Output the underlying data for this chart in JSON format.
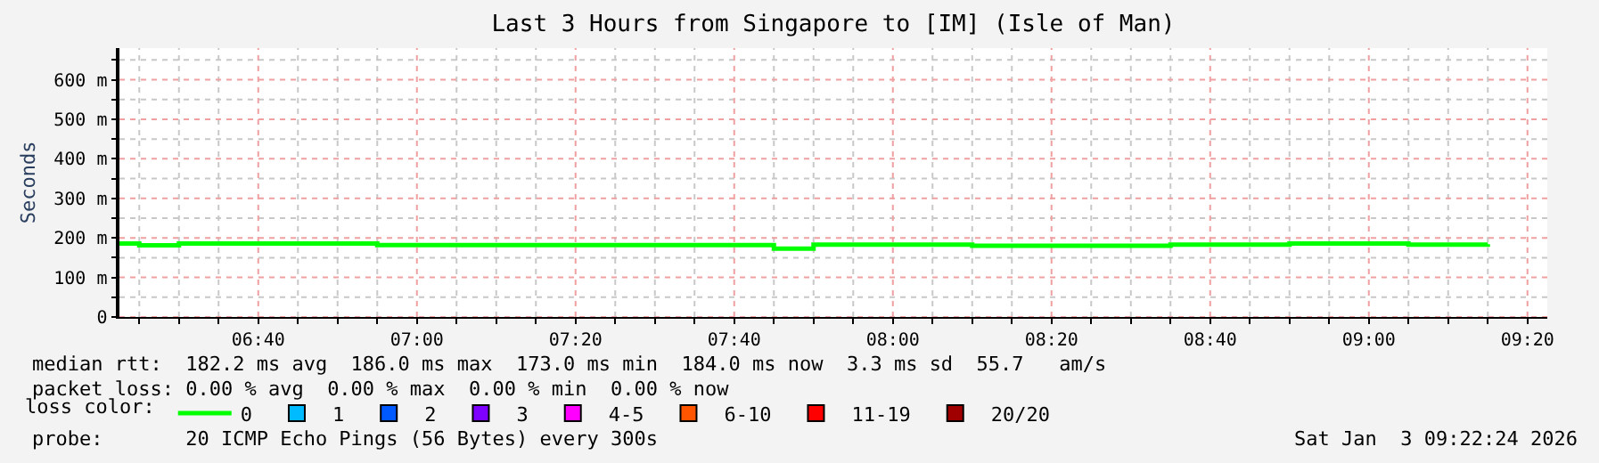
{
  "chart_data": {
    "type": "step",
    "title": "Last 3 Hours from Singapore to [IM] (Isle of Man)",
    "ylabel": "Seconds",
    "x": [
      6.375,
      6.4167,
      6.5,
      6.9167,
      7.75,
      7.8333,
      8.1667,
      8.5833,
      8.8333,
      9.0833,
      9.25
    ],
    "series": [
      {
        "name": "0",
        "color": "#00ff00",
        "values": [
          186,
          181,
          186,
          182,
          173,
          183,
          180,
          183,
          186,
          183,
          184
        ]
      },
      {
        "name": "1",
        "color": "#00bbff",
        "values": [
          null,
          null,
          null,
          null,
          null,
          null,
          null,
          null,
          null,
          null,
          null
        ]
      },
      {
        "name": "2",
        "color": "#0059ff",
        "values": [
          null,
          null,
          null,
          null,
          null,
          null,
          null,
          null,
          null,
          null,
          null
        ]
      },
      {
        "name": "3",
        "color": "#7e00ff",
        "values": [
          null,
          null,
          null,
          null,
          null,
          null,
          null,
          null,
          null,
          null,
          null
        ]
      },
      {
        "name": "4-5",
        "color": "#ff00ff",
        "values": [
          null,
          null,
          null,
          null,
          null,
          null,
          null,
          null,
          null,
          null,
          null
        ]
      },
      {
        "name": "6-10",
        "color": "#ff5500",
        "values": [
          null,
          null,
          null,
          null,
          null,
          null,
          null,
          null,
          null,
          null,
          null
        ]
      },
      {
        "name": "11-19",
        "color": "#ff0000",
        "values": [
          null,
          null,
          null,
          null,
          null,
          null,
          null,
          null,
          null,
          null,
          null
        ]
      },
      {
        "name": "20/20",
        "color": "#a10000",
        "values": [
          null,
          null,
          null,
          null,
          null,
          null,
          null,
          null,
          null,
          null,
          null
        ]
      }
    ],
    "legend_title": "loss color:",
    "legend": "bottom",
    "xlim": [
      6.375,
      9.375
    ],
    "ylim": [
      0,
      680
    ],
    "xticks": [
      {
        "value": 6.4167,
        "label": null
      },
      {
        "value": 6.5,
        "label": null
      },
      {
        "value": 6.5833,
        "label": null
      },
      {
        "value": 6.6667,
        "label": "06:40"
      },
      {
        "value": 6.75,
        "label": null
      },
      {
        "value": 6.8333,
        "label": null
      },
      {
        "value": 6.9167,
        "label": null
      },
      {
        "value": 7.0,
        "label": "07:00"
      },
      {
        "value": 7.0833,
        "label": null
      },
      {
        "value": 7.1667,
        "label": null
      },
      {
        "value": 7.25,
        "label": null
      },
      {
        "value": 7.3333,
        "label": "07:20"
      },
      {
        "value": 7.4167,
        "label": null
      },
      {
        "value": 7.5,
        "label": null
      },
      {
        "value": 7.5833,
        "label": null
      },
      {
        "value": 7.6667,
        "label": "07:40"
      },
      {
        "value": 7.75,
        "label": null
      },
      {
        "value": 7.8333,
        "label": null
      },
      {
        "value": 7.9167,
        "label": null
      },
      {
        "value": 8.0,
        "label": "08:00"
      },
      {
        "value": 8.0833,
        "label": null
      },
      {
        "value": 8.1667,
        "label": null
      },
      {
        "value": 8.25,
        "label": null
      },
      {
        "value": 8.3333,
        "label": "08:20"
      },
      {
        "value": 8.4167,
        "label": null
      },
      {
        "value": 8.5,
        "label": null
      },
      {
        "value": 8.5833,
        "label": null
      },
      {
        "value": 8.6667,
        "label": "08:40"
      },
      {
        "value": 8.75,
        "label": null
      },
      {
        "value": 8.8333,
        "label": null
      },
      {
        "value": 8.9167,
        "label": null
      },
      {
        "value": 9.0,
        "label": "09:00"
      },
      {
        "value": 9.0833,
        "label": null
      },
      {
        "value": 9.1667,
        "label": null
      },
      {
        "value": 9.25,
        "label": null
      },
      {
        "value": 9.3333,
        "label": "09:20"
      }
    ],
    "yticks": [
      0,
      {
        "value": 50,
        "label": null
      },
      {
        "value": 100,
        "label": "100 m"
      },
      {
        "value": 150,
        "label": null
      },
      {
        "value": 200,
        "label": "200 m"
      },
      {
        "value": 250,
        "label": null
      },
      {
        "value": 300,
        "label": "300 m"
      },
      {
        "value": 350,
        "label": null
      },
      {
        "value": 400,
        "label": "400 m"
      },
      {
        "value": 450,
        "label": null
      },
      {
        "value": 500,
        "label": "500 m"
      },
      {
        "value": 550,
        "label": null
      },
      {
        "value": 600,
        "label": "600 m"
      },
      {
        "value": 650,
        "label": null
      }
    ],
    "grid": true,
    "line_style": "solid",
    "marker": "none",
    "annotations": [
      "median rtt:  182.2 ms avg  186.0 ms max  173.0 ms min  184.0 ms now  3.3 ms sd  55.7   am/s",
      "packet loss: 0.00 % avg  0.00 % max  0.00 % min  0.00 % now",
      "probe:       20 ICMP Echo Pings (56 Bytes) every 300s",
      "Sat Jan  3 09:22:24 2026"
    ]
  }
}
